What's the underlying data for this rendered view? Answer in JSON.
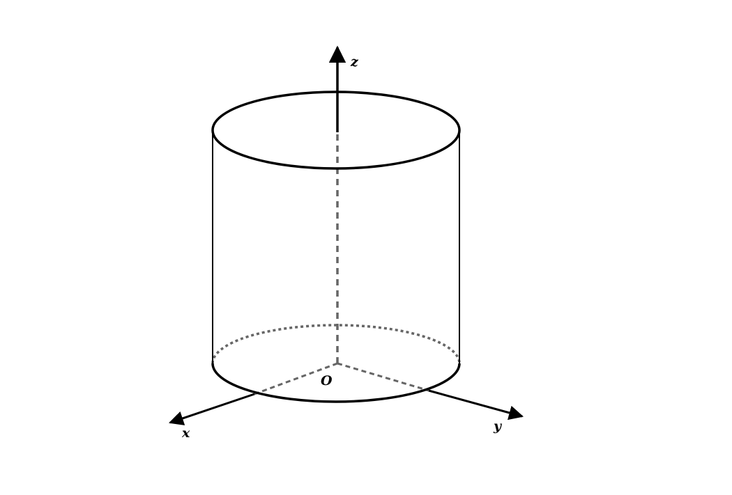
{
  "figure": {
    "axis_labels": {
      "x": "x",
      "y": "y",
      "z": "z"
    },
    "origin_label": "O"
  }
}
